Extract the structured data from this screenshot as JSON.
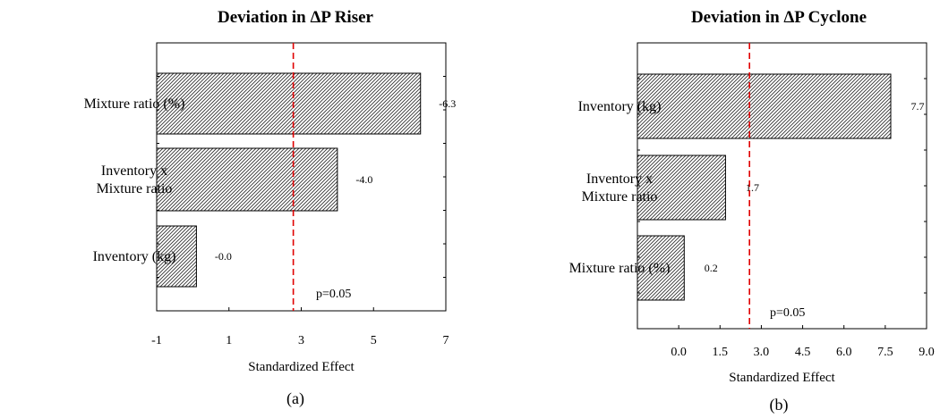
{
  "chart_data": [
    {
      "type": "bar",
      "orientation": "horizontal",
      "title": "Deviation in ΔP Riser",
      "xlabel": "Standardized Effect",
      "panel_label": "(a)",
      "categories": [
        [
          "Mixture ratio (%)"
        ],
        [
          "Inventory x",
          "Mixture ratio"
        ],
        [
          "Inventory (kg)"
        ]
      ],
      "values": [
        6.3,
        4.0,
        0.1
      ],
      "data_labels": [
        "-6.3",
        "-4.0",
        "-0.0"
      ],
      "xlim": [
        -1,
        7
      ],
      "xticks": [
        -1,
        1,
        3,
        5,
        7
      ],
      "xtick_labels": [
        "-1",
        "1",
        "3",
        "5",
        "7"
      ],
      "ref_line": 2.78,
      "ref_label": "p=0.05",
      "ref_color": "#e00000",
      "bar_pattern": "diagonal-hatch"
    },
    {
      "type": "bar",
      "orientation": "horizontal",
      "title": "Deviation in ΔP Cyclone",
      "xlabel": "Standardized Effect",
      "panel_label": "(b)",
      "categories": [
        [
          "Inventory (kg)"
        ],
        [
          "Inventory x",
          "Mixture ratio"
        ],
        [
          "Mixture ratio (%)"
        ]
      ],
      "values": [
        7.7,
        1.7,
        0.2
      ],
      "data_labels": [
        "7.7",
        "1.7",
        "0.2"
      ],
      "xlim": [
        -1.5,
        9.0
      ],
      "xticks": [
        0.0,
        1.5,
        3.0,
        4.5,
        6.0,
        7.5,
        9.0
      ],
      "xtick_labels": [
        "0.0",
        "1.5",
        "3.0",
        "4.5",
        "6.0",
        "7.5",
        "9.0"
      ],
      "ref_line": 2.57,
      "ref_label": "p=0.05",
      "ref_color": "#e00000",
      "bar_pattern": "diagonal-hatch"
    }
  ]
}
